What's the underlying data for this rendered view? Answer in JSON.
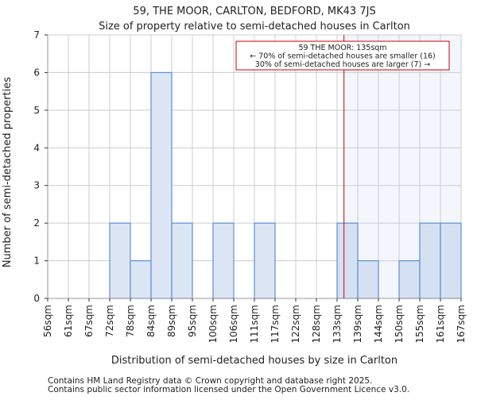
{
  "chart_data": {
    "type": "bar",
    "title": "59, THE MOOR, CARLTON, BEDFORD, MK43 7JS",
    "subtitle": "Size of property relative to semi-detached houses in Carlton",
    "xlabel": "Distribution of semi-detached houses by size in Carlton",
    "ylabel": "Number of semi-detached properties",
    "bin_edges": [
      56,
      61,
      67,
      72,
      78,
      84,
      89,
      95,
      100,
      106,
      111,
      117,
      122,
      128,
      133,
      139,
      144,
      150,
      155,
      161,
      167
    ],
    "tick_labels": [
      "56sqm",
      "61sqm",
      "67sqm",
      "72sqm",
      "78sqm",
      "84sqm",
      "89sqm",
      "95sqm",
      "100sqm",
      "106sqm",
      "111sqm",
      "117sqm",
      "122sqm",
      "128sqm",
      "133sqm",
      "139sqm",
      "144sqm",
      "150sqm",
      "155sqm",
      "161sqm",
      "167sqm"
    ],
    "values": [
      0,
      0,
      0,
      2,
      1,
      6,
      2,
      0,
      2,
      0,
      2,
      0,
      0,
      0,
      2,
      1,
      0,
      1,
      2,
      2
    ],
    "ylim": [
      0,
      7
    ],
    "yticks": [
      0,
      1,
      2,
      3,
      4,
      5,
      6,
      7
    ],
    "grid": true,
    "marker": {
      "value_sqm": 135,
      "label_line1": "59 THE MOOR: 135sqm",
      "label_line2": "← 70% of semi-detached houses are smaller (16)",
      "label_line3": "30% of semi-detached houses are larger (7) →"
    },
    "colors": {
      "bar_fill": "#dce6f5",
      "bar_fill_highlight": "#d5e1f2",
      "bar_edge": "#5b8fd9",
      "highlight_bg": "#f3f6fd",
      "marker": "#cc0000",
      "grid": "#cccccc"
    }
  },
  "footer": {
    "line1": "Contains HM Land Registry data © Crown copyright and database right 2025.",
    "line2": "Contains public sector information licensed under the Open Government Licence v3.0."
  }
}
